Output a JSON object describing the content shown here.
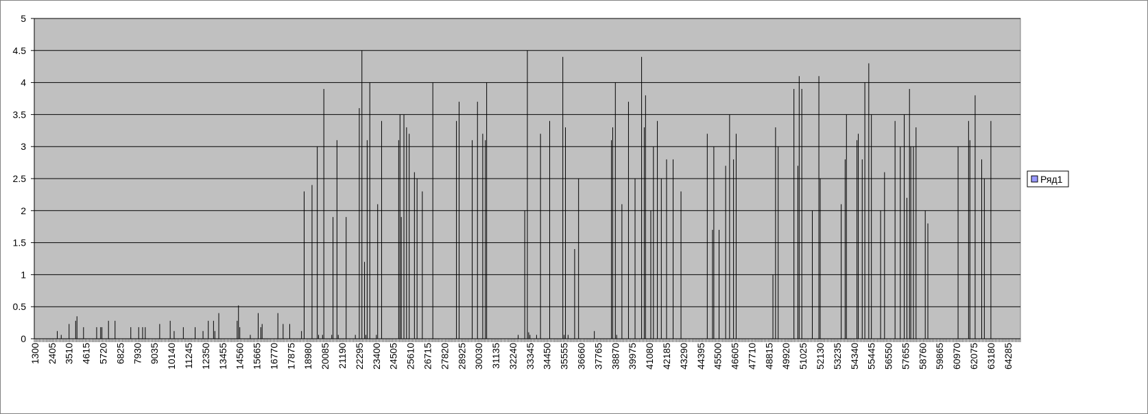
{
  "chart_data": {
    "type": "bar",
    "categories": [
      "1300",
      null,
      null,
      null,
      null,
      null,
      null,
      null,
      null,
      null,
      null,
      null,
      null,
      "2405",
      null,
      null,
      null,
      null,
      null,
      null,
      null,
      null,
      null,
      null,
      null,
      null,
      "3510",
      null,
      null,
      null,
      null,
      null,
      null,
      null,
      null,
      null,
      null,
      null,
      null,
      "4615",
      null,
      null,
      null,
      null,
      null,
      null,
      null,
      null,
      null,
      null,
      null,
      null,
      "5720",
      null,
      null,
      null,
      null,
      null,
      null,
      null,
      null,
      null,
      null,
      null,
      null,
      "6825",
      null,
      null,
      null,
      null,
      null,
      null,
      null,
      null,
      null,
      null,
      null,
      null,
      "7930",
      null,
      null,
      null,
      null,
      null,
      null,
      null,
      null,
      null,
      null,
      null,
      null,
      "9035",
      null,
      null,
      null,
      null,
      null,
      null,
      null,
      null,
      null,
      null,
      null,
      null,
      "10140",
      null,
      null,
      null,
      null,
      null,
      null,
      null,
      null,
      null,
      null,
      null,
      null,
      "11245",
      null,
      null,
      null,
      null,
      null,
      null,
      null,
      null,
      null,
      null,
      null,
      null,
      "12350",
      null,
      null,
      null,
      null,
      null,
      null,
      null,
      null,
      null,
      null,
      null,
      null,
      "13455",
      null,
      null,
      null,
      null,
      null,
      null,
      null,
      null,
      null,
      null,
      null,
      null,
      "14560",
      null,
      null,
      null,
      null,
      null,
      null,
      null,
      null,
      null,
      null,
      null,
      null,
      "15665",
      null,
      null,
      null,
      null,
      null,
      null,
      null,
      null,
      null,
      null,
      null,
      null,
      "16770",
      null,
      null,
      null,
      null,
      null,
      null,
      null,
      null,
      null,
      null,
      null,
      null,
      "17875",
      null,
      null,
      null,
      null,
      null,
      null,
      null,
      null,
      null,
      null,
      null,
      null,
      "18980",
      null,
      null,
      null,
      null,
      null,
      null,
      null,
      null,
      null,
      null,
      null,
      null,
      "20085",
      null,
      null,
      null,
      null,
      null,
      null,
      null,
      null,
      null,
      null,
      null,
      null,
      "21190",
      null,
      null,
      null,
      null,
      null,
      null,
      null,
      null,
      null,
      null,
      null,
      null,
      "22295",
      null,
      null,
      null,
      null,
      null,
      null,
      null,
      null,
      null,
      null,
      null,
      null,
      "23400",
      null,
      null,
      null,
      null,
      null,
      null,
      null,
      null,
      null,
      null,
      null,
      null,
      "24505",
      null,
      null,
      null,
      null,
      null,
      null,
      null,
      null,
      null,
      null,
      null,
      null,
      "25610",
      null,
      null,
      null,
      null,
      null,
      null,
      null,
      null,
      null,
      null,
      null,
      null,
      "26715",
      null,
      null,
      null,
      null,
      null,
      null,
      null,
      null,
      null,
      null,
      null,
      null,
      "27820",
      null,
      null,
      null,
      null,
      null,
      null,
      null,
      null,
      null,
      null,
      null,
      null,
      "28925",
      null,
      null,
      null,
      null,
      null,
      null,
      null,
      null,
      null,
      null,
      null,
      null,
      "30030",
      null,
      null,
      null,
      null,
      null,
      null,
      null,
      null,
      null,
      null,
      null,
      null,
      "31135",
      null,
      null,
      null,
      null,
      null,
      null,
      null,
      null,
      null,
      null,
      null,
      null,
      "32240",
      null,
      null,
      null,
      null,
      null,
      null,
      null,
      null,
      null,
      null,
      null,
      null,
      "33345",
      null,
      null,
      null,
      null,
      null,
      null,
      null,
      null,
      null,
      null,
      null,
      null,
      "34450",
      null,
      null,
      null,
      null,
      null,
      null,
      null,
      null,
      null,
      null,
      null,
      null,
      "35555",
      null,
      null,
      null,
      null,
      null,
      null,
      null,
      null,
      null,
      null,
      null,
      null,
      "36660",
      null,
      null,
      null,
      null,
      null,
      null,
      null,
      null,
      null,
      null,
      null,
      null,
      "37765",
      null,
      null,
      null,
      null,
      null,
      null,
      null,
      null,
      null,
      null,
      null,
      null,
      "38870",
      null,
      null,
      null,
      null,
      null,
      null,
      null,
      null,
      null,
      null,
      null,
      null,
      "39975",
      null,
      null,
      null,
      null,
      null,
      null,
      null,
      null,
      null,
      null,
      null,
      null,
      "41080",
      null,
      null,
      null,
      null,
      null,
      null,
      null,
      null,
      null,
      null,
      null,
      null,
      "42185",
      null,
      null,
      null,
      null,
      null,
      null,
      null,
      null,
      null,
      null,
      null,
      null,
      "43290",
      null,
      null,
      null,
      null,
      null,
      null,
      null,
      null,
      null,
      null,
      null,
      null,
      "44395",
      null,
      null,
      null,
      null,
      null,
      null,
      null,
      null,
      null,
      null,
      null,
      null,
      "45500",
      null,
      null,
      null,
      null,
      null,
      null,
      null,
      null,
      null,
      null,
      null,
      null,
      "46605",
      null,
      null,
      null,
      null,
      null,
      null,
      null,
      null,
      null,
      null,
      null,
      null,
      "47710",
      null,
      null,
      null,
      null,
      null,
      null,
      null,
      null,
      null,
      null,
      null,
      null,
      "48815",
      null,
      null,
      null,
      null,
      null,
      null,
      null,
      null,
      null,
      null,
      null,
      null,
      "49920",
      null,
      null,
      null,
      null,
      null,
      null,
      null,
      null,
      null,
      null,
      null,
      null,
      "51025",
      null,
      null,
      null,
      null,
      null,
      null,
      null,
      null,
      null,
      null,
      null,
      null,
      "52130",
      null,
      null,
      null,
      null,
      null,
      null,
      null,
      null,
      null,
      null,
      null,
      null,
      "53235",
      null,
      null,
      null,
      null,
      null,
      null,
      null,
      null,
      null,
      null,
      null,
      null,
      "54340",
      null,
      null,
      null,
      null,
      null,
      null,
      null,
      null,
      null,
      null,
      null,
      null,
      "55445",
      null,
      null,
      null,
      null,
      null,
      null,
      null,
      null,
      null,
      null,
      null,
      null,
      "56550",
      null,
      null,
      null,
      null,
      null,
      null,
      null,
      null,
      null,
      null,
      null,
      null,
      "57655",
      null,
      null,
      null,
      null,
      null,
      null,
      null,
      null,
      null,
      null,
      null,
      null,
      "58760",
      null,
      null,
      null,
      null,
      null,
      null,
      null,
      null,
      null,
      null,
      null,
      null,
      "59865",
      null,
      null,
      null,
      null,
      null,
      null,
      null,
      null,
      null,
      null,
      null,
      null,
      "60970",
      null,
      null,
      null,
      null,
      null,
      null,
      null,
      null,
      null,
      null,
      null,
      null,
      "62075",
      null,
      null,
      null,
      null,
      null,
      null,
      null,
      null,
      null,
      null,
      null,
      null,
      "63180",
      null,
      null,
      null,
      null,
      null,
      null,
      null,
      null,
      null,
      null,
      null,
      null,
      "64285",
      null,
      null,
      null,
      null,
      null,
      null,
      null,
      null,
      null
    ],
    "series": [
      {
        "name": "Ряд1",
        "color": "#9999ff",
        "edgecolor": "#000000",
        "values": [
          0,
          0,
          0,
          0,
          0,
          0,
          0,
          0,
          0,
          0,
          0,
          0,
          0,
          0,
          0,
          0,
          0,
          0.12,
          0,
          0,
          0.06,
          0,
          0,
          0,
          0,
          0,
          0.23,
          0,
          0,
          0,
          0,
          0.28,
          0.35,
          0,
          0,
          0,
          0,
          0.18,
          0,
          0,
          0,
          0,
          0,
          0,
          0,
          0,
          0,
          0.18,
          0,
          0,
          0.18,
          0.18,
          0,
          0,
          0,
          0,
          0.28,
          0,
          0,
          0,
          0,
          0.28,
          0,
          0,
          0,
          0,
          0,
          0,
          0,
          0,
          0,
          0,
          0,
          0.18,
          0,
          0,
          0,
          0,
          0,
          0.18,
          0,
          0,
          0.18,
          0,
          0.18,
          0,
          0,
          0,
          0,
          0,
          0,
          0,
          0,
          0,
          0,
          0.23,
          0,
          0,
          0,
          0,
          0,
          0,
          0,
          0.28,
          0,
          0,
          0.12,
          0,
          0,
          0,
          0,
          0,
          0,
          0.18,
          0,
          0,
          0,
          0,
          0,
          0,
          0,
          0,
          0.18,
          0,
          0,
          0,
          0,
          0,
          0.12,
          0,
          0,
          0,
          0.28,
          0,
          0,
          0,
          0.28,
          0.12,
          0,
          0,
          0.4,
          0,
          0,
          0,
          0,
          0,
          0,
          0,
          0,
          0,
          0,
          0,
          0,
          0,
          0.28,
          0.52,
          0.18,
          0,
          0,
          0,
          0,
          0,
          0,
          0,
          0.06,
          0,
          0,
          0,
          0,
          0,
          0.4,
          0,
          0.18,
          0.23,
          0,
          0,
          0,
          0,
          0,
          0,
          0,
          0,
          0,
          0,
          0,
          0.4,
          0,
          0,
          0,
          0.23,
          0,
          0,
          0,
          0,
          0.23,
          0,
          0,
          0,
          0,
          0,
          0,
          0,
          0,
          0.12,
          0,
          2.3,
          0,
          0,
          0,
          0,
          0,
          2.4,
          0,
          0,
          0,
          3,
          0.06,
          0,
          0,
          0.06,
          3.9,
          0,
          0,
          0,
          0,
          0,
          0.06,
          1.9,
          0,
          0,
          3.1,
          0.06,
          0,
          0,
          0,
          0,
          0,
          1.9,
          0,
          0,
          0,
          0,
          0,
          0,
          0.06,
          0,
          0,
          3.6,
          0,
          4.5,
          0,
          1.2,
          0.06,
          3.1,
          0,
          4,
          0,
          0,
          0,
          0,
          0.06,
          2.1,
          0,
          0,
          3.4,
          0,
          0,
          0,
          0,
          0,
          0,
          0,
          0,
          0,
          0,
          0,
          0,
          3.1,
          3.5,
          1.9,
          0,
          3.5,
          0,
          3.3,
          0,
          3.2,
          0,
          0,
          0,
          2.6,
          0,
          2.5,
          0,
          0,
          0,
          2.3,
          0,
          0,
          0,
          0,
          0,
          0,
          0,
          4,
          0,
          0,
          0,
          0,
          0,
          0,
          0,
          0,
          0,
          0,
          0,
          0,
          0,
          0,
          0,
          0,
          0,
          3.4,
          0,
          3.7,
          0,
          0,
          0,
          0,
          0,
          0,
          0,
          0,
          0,
          3.1,
          0,
          0,
          0,
          3.7,
          0,
          0,
          0,
          3.2,
          0,
          3.1,
          4,
          0,
          0,
          0,
          0,
          0,
          0,
          0,
          0,
          0,
          0,
          0,
          0,
          0,
          0,
          0,
          0,
          0,
          0,
          0,
          0,
          0,
          0,
          0,
          0.06,
          0,
          0,
          0,
          0,
          2,
          0,
          4.5,
          0.1,
          0.06,
          0,
          0,
          0,
          0,
          0.06,
          0,
          0,
          3.2,
          0,
          0,
          0,
          0,
          0,
          0,
          3.4,
          0,
          0,
          0,
          0,
          0,
          0,
          0,
          0,
          0,
          4.4,
          0.06,
          3.3,
          0,
          0.06,
          0,
          0,
          0,
          0,
          1.4,
          0,
          0,
          2.5,
          0,
          0,
          0,
          0,
          0,
          0,
          0,
          0,
          0,
          0,
          0,
          0.12,
          0,
          0,
          0,
          0,
          0,
          0,
          0,
          0,
          0,
          0,
          0,
          0,
          3.1,
          3.3,
          0,
          4,
          0.06,
          0,
          0,
          0,
          2.1,
          0,
          0,
          0,
          0,
          3.7,
          0,
          0,
          0,
          0,
          2.5,
          0,
          0,
          0,
          0,
          4.4,
          0,
          3.3,
          3.8,
          0,
          0,
          0,
          2,
          0,
          3,
          0,
          0,
          3.4,
          0,
          0,
          2.5,
          0,
          0,
          0,
          2.8,
          0,
          0,
          0,
          0,
          2.8,
          0,
          0,
          0,
          0,
          0,
          2.3,
          0,
          0,
          0,
          0,
          0,
          0,
          0,
          0,
          0,
          0,
          0,
          0,
          0,
          0,
          0,
          0,
          0,
          0,
          0,
          3.2,
          0,
          0,
          0,
          1.7,
          3,
          0,
          0,
          0,
          1.7,
          0,
          0,
          0,
          0,
          2.7,
          0,
          0,
          3.5,
          0,
          0,
          2.8,
          0,
          3.2,
          0,
          0,
          0,
          0,
          0,
          0,
          0,
          0,
          0,
          0,
          0,
          0,
          0,
          0,
          0,
          0,
          0,
          0,
          0,
          0,
          0,
          0,
          0,
          0,
          0,
          0,
          0,
          1,
          0,
          3.3,
          0,
          3,
          0,
          0,
          0,
          0,
          0,
          0,
          0,
          0,
          0,
          0,
          0,
          3.9,
          0,
          0,
          2.7,
          4.1,
          0,
          3.9,
          0,
          0,
          0,
          0,
          0,
          0,
          0,
          2,
          0,
          0,
          0,
          0,
          4.1,
          2.5,
          0,
          0,
          0,
          0,
          0,
          0,
          0,
          0,
          0,
          0,
          0,
          0,
          0,
          0,
          0,
          2.1,
          0,
          0,
          2.8,
          3.5,
          0,
          0,
          0,
          0,
          0,
          0,
          0,
          3.1,
          3.2,
          0,
          0,
          2.8,
          0,
          4,
          0,
          0,
          4.3,
          0,
          3.5,
          0,
          0,
          0,
          0,
          0,
          0,
          2,
          0,
          0,
          2.6,
          0,
          0,
          0,
          0,
          0,
          0,
          0,
          3.4,
          0,
          0,
          0,
          3,
          0,
          0,
          3.5,
          0,
          2.2,
          0,
          3.9,
          3,
          0,
          3,
          0,
          3.3,
          0,
          0,
          0,
          0,
          0,
          0,
          2,
          0,
          1.8,
          0,
          0,
          0,
          0,
          0,
          0,
          0,
          0,
          0,
          0,
          0,
          0,
          0,
          0,
          0,
          0,
          0,
          0,
          0,
          0,
          0,
          0,
          3,
          0,
          0,
          0,
          0,
          0,
          0,
          0,
          3.4,
          3.1,
          0,
          0,
          0,
          3.8,
          0,
          0,
          0,
          0,
          2.8,
          0,
          2.5,
          0,
          0,
          0,
          0,
          3.4,
          0,
          0,
          0,
          0,
          0,
          0,
          0,
          0,
          0,
          0,
          0,
          0,
          0,
          0,
          0,
          0,
          0,
          0,
          0,
          0,
          0,
          0
        ]
      }
    ],
    "ylim": [
      0,
      5
    ],
    "yticks": [
      0,
      0.5,
      1,
      1.5,
      2,
      2.5,
      3,
      3.5,
      4,
      4.5,
      5
    ],
    "grid": true,
    "plot_background": "#c0c0c0",
    "legend": "right"
  }
}
